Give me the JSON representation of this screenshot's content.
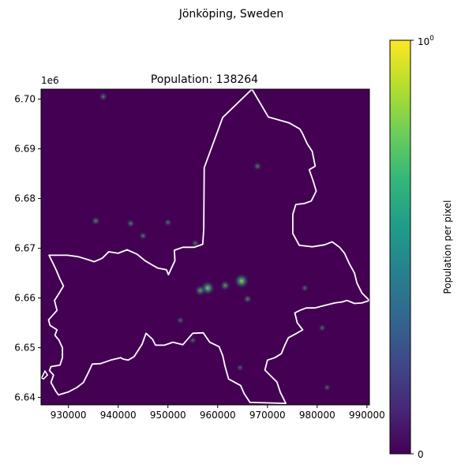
{
  "figure": {
    "suptitle": "Jönköping, Sweden"
  },
  "chart_data": {
    "type": "heatmap",
    "title": "Population: 138264",
    "xlabel": "",
    "ylabel": "",
    "x_offset_label": "",
    "y_offset_label": "1e6",
    "xlim": [
      924500,
      990500
    ],
    "ylim": [
      6638500,
      6702000
    ],
    "x_ticks": [
      930000,
      940000,
      950000,
      960000,
      970000,
      980000,
      990000
    ],
    "x_tick_labels": [
      "930000",
      "940000",
      "950000",
      "960000",
      "970000",
      "980000",
      "990000"
    ],
    "y_ticks": [
      6640000,
      6650000,
      6660000,
      6670000,
      6680000,
      6690000,
      6700000
    ],
    "y_tick_labels": [
      "6.64",
      "6.65",
      "6.66",
      "6.67",
      "6.68",
      "6.69",
      "6.70"
    ],
    "grid": false,
    "colormap": "viridis",
    "background_color": "#440154",
    "boundary_color": "#ffffff",
    "colorbar": {
      "label": "Population per pixel",
      "min_label": "0",
      "max_label_base": "10",
      "max_label_exp": "0",
      "colors": [
        "#440154",
        "#482878",
        "#3e4989",
        "#31688e",
        "#26828e",
        "#1f9e89",
        "#35b779",
        "#6ece58",
        "#b5de2b",
        "#fde725"
      ]
    },
    "hotspots": [
      {
        "x": 958000,
        "y": 6662000,
        "intensity": 0.55
      },
      {
        "x": 964800,
        "y": 6663400,
        "intensity": 0.6
      },
      {
        "x": 956500,
        "y": 6661500,
        "intensity": 0.35
      },
      {
        "x": 961500,
        "y": 6662500,
        "intensity": 0.3
      },
      {
        "x": 935500,
        "y": 6675500,
        "intensity": 0.2
      },
      {
        "x": 942500,
        "y": 6675000,
        "intensity": 0.18
      },
      {
        "x": 950000,
        "y": 6675200,
        "intensity": 0.15
      },
      {
        "x": 968000,
        "y": 6686500,
        "intensity": 0.18
      },
      {
        "x": 937000,
        "y": 6700500,
        "intensity": 0.18
      },
      {
        "x": 945000,
        "y": 6672500,
        "intensity": 0.15
      },
      {
        "x": 977500,
        "y": 6662000,
        "intensity": 0.12
      },
      {
        "x": 955000,
        "y": 6651500,
        "intensity": 0.12
      },
      {
        "x": 981000,
        "y": 6654000,
        "intensity": 0.12
      },
      {
        "x": 964500,
        "y": 6646000,
        "intensity": 0.1
      },
      {
        "x": 982000,
        "y": 6642000,
        "intensity": 0.1
      },
      {
        "x": 955500,
        "y": 6671000,
        "intensity": 0.14
      },
      {
        "x": 966000,
        "y": 6659800,
        "intensity": 0.2
      },
      {
        "x": 952500,
        "y": 6655500,
        "intensity": 0.12
      }
    ],
    "boundary": [
      [
        966900,
        6702000
      ],
      [
        970200,
        6696400
      ],
      [
        974400,
        6695200
      ],
      [
        976500,
        6694000
      ],
      [
        977100,
        6693000
      ],
      [
        978000,
        6691000
      ],
      [
        979000,
        6689500
      ],
      [
        979600,
        6686500
      ],
      [
        978400,
        6685800
      ],
      [
        979200,
        6683500
      ],
      [
        979800,
        6681500
      ],
      [
        978800,
        6679500
      ],
      [
        977400,
        6679000
      ],
      [
        975700,
        6678800
      ],
      [
        975100,
        6676800
      ],
      [
        975100,
        6673000
      ],
      [
        976400,
        6670600
      ],
      [
        979000,
        6670300
      ],
      [
        981500,
        6670700
      ],
      [
        983000,
        6671300
      ],
      [
        984500,
        6670200
      ],
      [
        985500,
        6669000
      ],
      [
        986400,
        6667000
      ],
      [
        987500,
        6665000
      ],
      [
        988000,
        6663000
      ],
      [
        989000,
        6661000
      ],
      [
        990500,
        6659500
      ],
      [
        989000,
        6659000
      ],
      [
        987500,
        6658900
      ],
      [
        986000,
        6659500
      ],
      [
        985000,
        6659200
      ],
      [
        983500,
        6659000
      ],
      [
        981500,
        6658500
      ],
      [
        979500,
        6658000
      ],
      [
        977800,
        6658000
      ],
      [
        976500,
        6657500
      ],
      [
        975500,
        6657000
      ],
      [
        976000,
        6655000
      ],
      [
        977100,
        6653600
      ],
      [
        975500,
        6652700
      ],
      [
        974200,
        6652000
      ],
      [
        973500,
        6650500
      ],
      [
        972800,
        6648800
      ],
      [
        971500,
        6648000
      ],
      [
        970000,
        6647500
      ],
      [
        969500,
        6645500
      ],
      [
        970800,
        6644200
      ],
      [
        971900,
        6643100
      ],
      [
        972600,
        6641000
      ],
      [
        973700,
        6638800
      ],
      [
        966500,
        6639000
      ],
      [
        965300,
        6640800
      ],
      [
        964600,
        6642400
      ],
      [
        963500,
        6643000
      ],
      [
        962200,
        6643700
      ],
      [
        961500,
        6646200
      ],
      [
        961000,
        6648400
      ],
      [
        960300,
        6650200
      ],
      [
        958400,
        6651100
      ],
      [
        957100,
        6653000
      ],
      [
        955000,
        6652900
      ],
      [
        953000,
        6650600
      ],
      [
        951000,
        6651100
      ],
      [
        949300,
        6650500
      ],
      [
        947500,
        6650500
      ],
      [
        946900,
        6651700
      ],
      [
        945600,
        6652900
      ],
      [
        944800,
        6650700
      ],
      [
        943200,
        6648200
      ],
      [
        942000,
        6647500
      ],
      [
        941000,
        6647700
      ],
      [
        940500,
        6648000
      ],
      [
        938500,
        6647500
      ],
      [
        936500,
        6646800
      ],
      [
        934800,
        6646700
      ],
      [
        934000,
        6645000
      ],
      [
        933000,
        6643000
      ],
      [
        931700,
        6642000
      ],
      [
        930000,
        6641100
      ],
      [
        929000,
        6640800
      ],
      [
        928000,
        6640500
      ],
      [
        927500,
        6641200
      ],
      [
        926500,
        6643000
      ],
      [
        927000,
        6644500
      ],
      [
        926200,
        6645400
      ],
      [
        926500,
        6646200
      ],
      [
        928300,
        6646500
      ],
      [
        928800,
        6648000
      ],
      [
        928800,
        6650000
      ],
      [
        928100,
        6651500
      ],
      [
        927300,
        6652500
      ],
      [
        927700,
        6653600
      ],
      [
        926300,
        6654500
      ],
      [
        926000,
        6655600
      ],
      [
        927700,
        6657500
      ],
      [
        927200,
        6659500
      ],
      [
        928100,
        6660900
      ],
      [
        929000,
        6662400
      ],
      [
        928300,
        6663800
      ],
      [
        927600,
        6665500
      ],
      [
        926900,
        6667000
      ],
      [
        926100,
        6668600
      ],
      [
        929800,
        6668600
      ],
      [
        932000,
        6668300
      ],
      [
        934000,
        6667700
      ],
      [
        935200,
        6667300
      ],
      [
        936800,
        6668000
      ],
      [
        938100,
        6669300
      ],
      [
        940000,
        6669000
      ],
      [
        941800,
        6669700
      ],
      [
        943800,
        6668800
      ],
      [
        945400,
        6667500
      ],
      [
        946900,
        6666600
      ],
      [
        948000,
        6666000
      ],
      [
        949700,
        6665700
      ],
      [
        950100,
        6664700
      ],
      [
        951400,
        6667500
      ],
      [
        951300,
        6669600
      ],
      [
        953000,
        6670200
      ],
      [
        955300,
        6670200
      ],
      [
        957000,
        6670800
      ],
      [
        957200,
        6673800
      ],
      [
        957300,
        6686200
      ],
      [
        961000,
        6696300
      ],
      [
        966900,
        6702000
      ]
    ],
    "boundary_islands": [
      [
        [
          924600,
          6643900
        ],
        [
          925300,
          6645300
        ],
        [
          925800,
          6644500
        ],
        [
          925000,
          6643700
        ],
        [
          924600,
          6643900
        ]
      ]
    ]
  }
}
